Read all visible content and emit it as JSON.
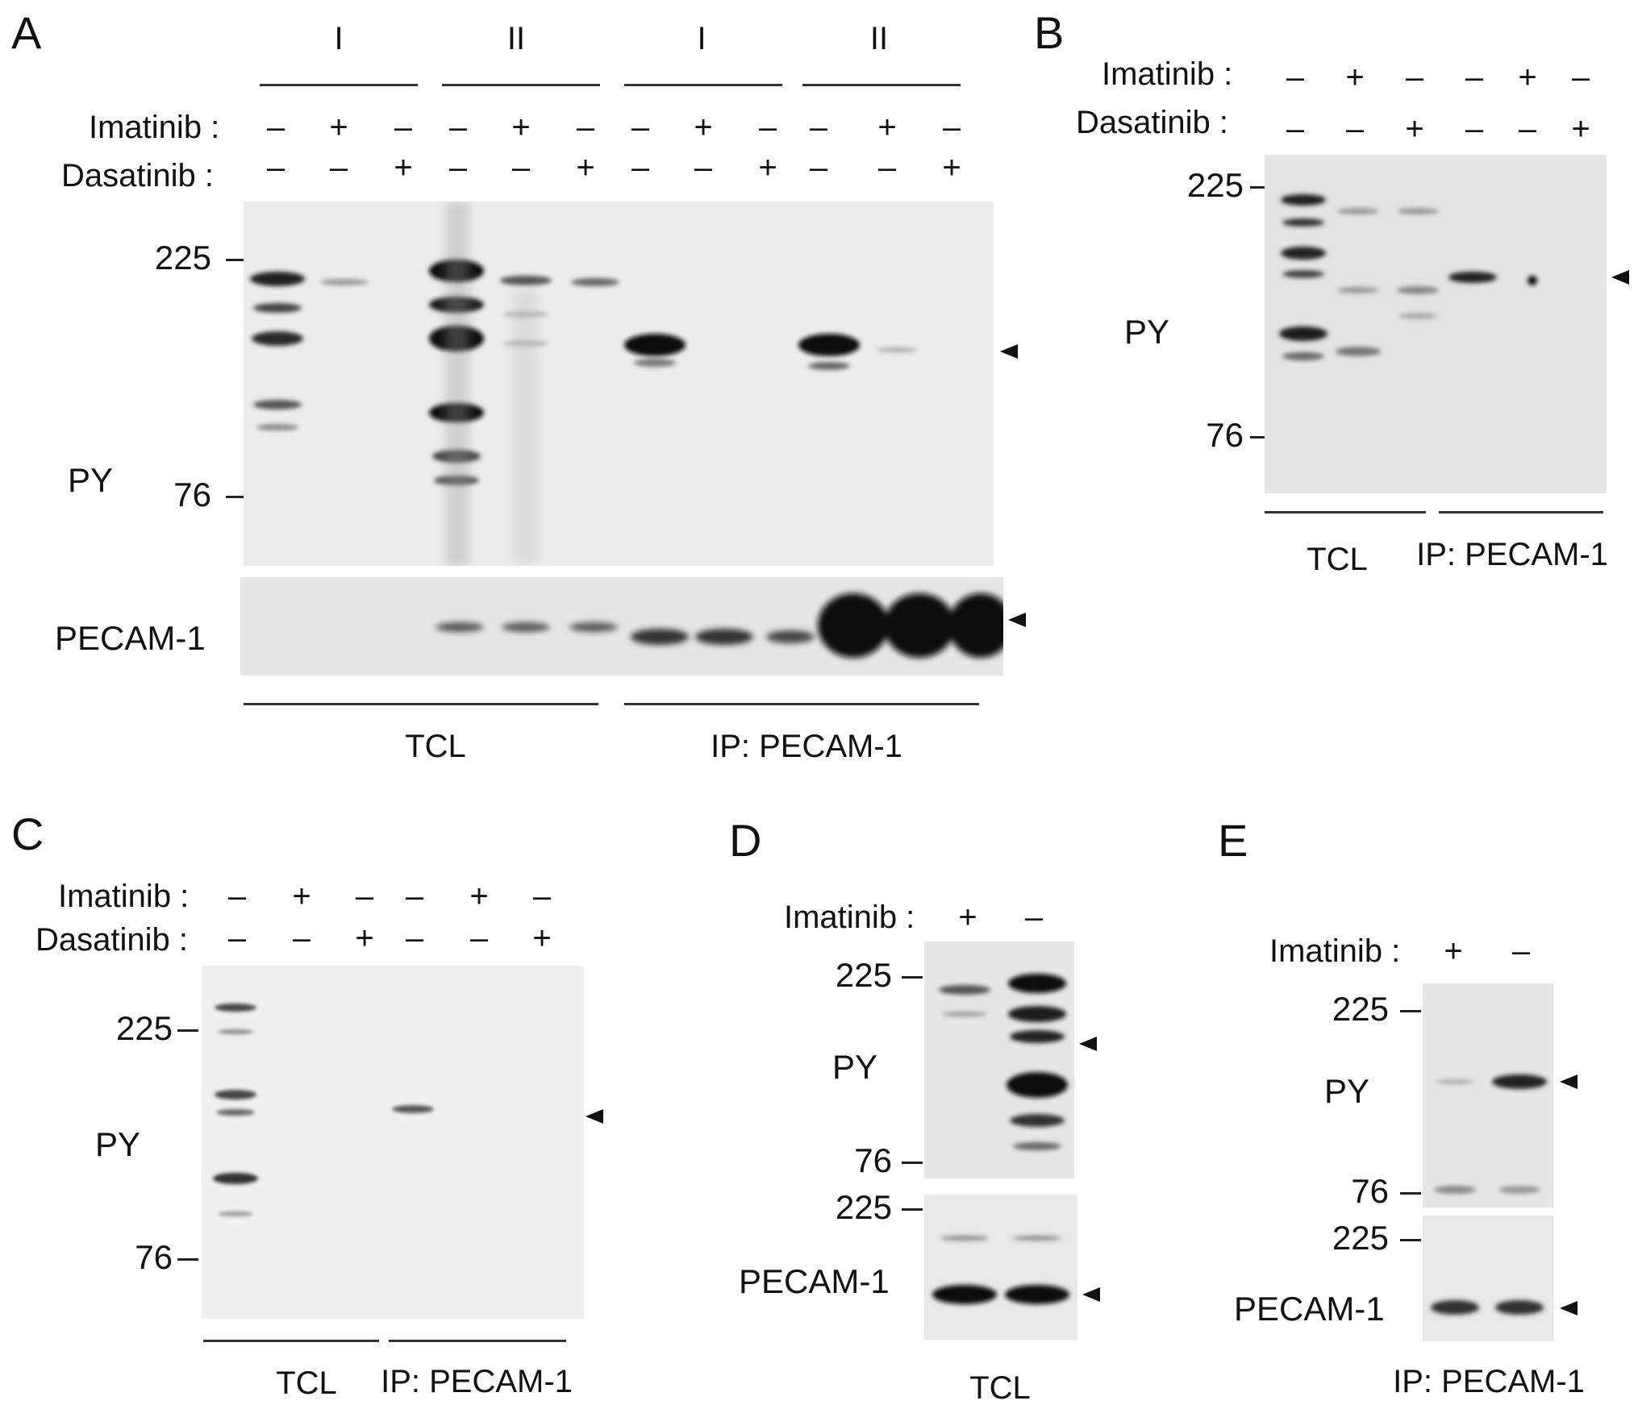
{
  "panels": {
    "A": {
      "label": "A",
      "groups": [
        "I",
        "II",
        "I",
        "II"
      ],
      "imatinib_label": "Imatinib :",
      "dasatinib_label": "Dasatinib :",
      "imatinib": [
        "–",
        "+",
        "–",
        "–",
        "+",
        "–",
        "–",
        "+",
        "–",
        "–",
        "+",
        "–"
      ],
      "dasatinib": [
        "–",
        "–",
        "+",
        "–",
        "–",
        "+",
        "–",
        "–",
        "+",
        "–",
        "–",
        "+"
      ],
      "mw": [
        "225",
        "76"
      ],
      "row_labels": [
        "PY",
        "PECAM-1"
      ],
      "bottom": [
        "TCL",
        "IP: PECAM-1"
      ]
    },
    "B": {
      "label": "B",
      "imatinib_label": "Imatinib :",
      "dasatinib_label": "Dasatinib :",
      "imatinib": [
        "–",
        "+",
        "–",
        "–",
        "+",
        "–"
      ],
      "dasatinib": [
        "–",
        "–",
        "+",
        "–",
        "–",
        "+"
      ],
      "mw": [
        "225",
        "76"
      ],
      "row_label": "PY",
      "bottom": [
        "TCL",
        "IP: PECAM-1"
      ]
    },
    "C": {
      "label": "C",
      "imatinib_label": "Imatinib :",
      "dasatinib_label": "Dasatinib :",
      "imatinib": [
        "–",
        "+",
        "–",
        "–",
        "+",
        "–"
      ],
      "dasatinib": [
        "–",
        "–",
        "+",
        "–",
        "–",
        "+"
      ],
      "mw": [
        "225",
        "76"
      ],
      "row_label": "PY",
      "bottom": [
        "TCL",
        "IP: PECAM-1"
      ]
    },
    "D": {
      "label": "D",
      "imatinib_label": "Imatinib :",
      "imatinib": [
        "+",
        "–"
      ],
      "mw": [
        "225",
        "76",
        "225"
      ],
      "row_labels": [
        "PY",
        "PECAM-1"
      ],
      "bottom": "TCL"
    },
    "E": {
      "label": "E",
      "imatinib_label": "Imatinib :",
      "imatinib": [
        "+",
        "–"
      ],
      "mw": [
        "225",
        "76",
        "225"
      ],
      "row_labels": [
        "PY",
        "PECAM-1"
      ],
      "bottom": "IP: PECAM-1"
    }
  }
}
